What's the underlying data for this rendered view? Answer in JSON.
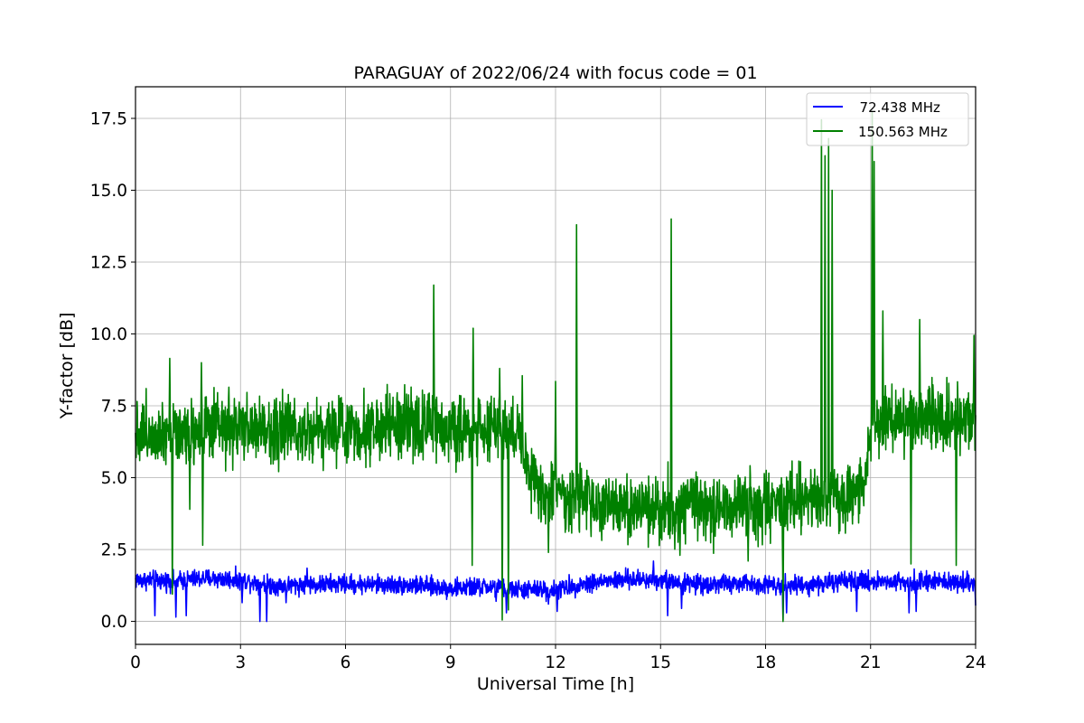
{
  "chart_data": {
    "type": "line",
    "title": "PARAGUAY of 2022/06/24 with focus code = 01",
    "xlabel": "Universal Time [h]",
    "ylabel": "Y-factor [dB]",
    "xlim": [
      0,
      24
    ],
    "ylim": [
      -0.8,
      18.6
    ],
    "x_ticks": [
      0,
      3,
      6,
      9,
      12,
      15,
      18,
      21,
      24
    ],
    "x_tick_labels": [
      "0",
      "3",
      "6",
      "9",
      "12",
      "15",
      "18",
      "21",
      "24"
    ],
    "y_ticks": [
      0,
      2.5,
      5,
      7.5,
      10,
      12.5,
      15,
      17.5
    ],
    "y_tick_labels": [
      "0.0",
      "2.5",
      "5.0",
      "7.5",
      "10.0",
      "12.5",
      "15.0",
      "17.5"
    ],
    "grid": true,
    "legend": {
      "position": "top-right"
    },
    "series": [
      {
        "name": "  72.438 MHz",
        "color": "#0000ff",
        "baseline": [
          [
            0,
            1.45
          ],
          [
            1,
            1.4
          ],
          [
            2,
            1.5
          ],
          [
            3,
            1.45
          ],
          [
            4,
            1.25
          ],
          [
            6,
            1.3
          ],
          [
            8,
            1.25
          ],
          [
            9,
            1.15
          ],
          [
            10,
            1.2
          ],
          [
            11,
            1.1
          ],
          [
            12,
            1.1
          ],
          [
            13,
            1.35
          ],
          [
            14,
            1.45
          ],
          [
            15,
            1.45
          ],
          [
            16,
            1.3
          ],
          [
            18,
            1.3
          ],
          [
            19,
            1.25
          ],
          [
            20,
            1.35
          ],
          [
            21,
            1.4
          ],
          [
            24,
            1.35
          ]
        ],
        "noise": 0.28,
        "spikes": [
          [
            0.55,
            0.2
          ],
          [
            1.15,
            0.15
          ],
          [
            1.45,
            0.2
          ],
          [
            3.05,
            0.65
          ],
          [
            3.55,
            0.0
          ],
          [
            3.75,
            0.0
          ],
          [
            4.3,
            0.65
          ],
          [
            4.9,
            1.85
          ],
          [
            10.3,
            0.7
          ],
          [
            10.6,
            0.3
          ],
          [
            11.8,
            0.6
          ],
          [
            12.05,
            0.35
          ],
          [
            14.8,
            2.1
          ],
          [
            15.2,
            0.2
          ],
          [
            15.6,
            0.45
          ],
          [
            18.5,
            0.05
          ],
          [
            18.6,
            0.3
          ],
          [
            20.6,
            0.35
          ],
          [
            22.1,
            0.3
          ],
          [
            22.3,
            0.35
          ],
          [
            24.0,
            0.55
          ]
        ]
      },
      {
        "name": "150.563 MHz",
        "color": "#008000",
        "baseline": [
          [
            0,
            6.6
          ],
          [
            2,
            6.65
          ],
          [
            4,
            6.7
          ],
          [
            6,
            6.7
          ],
          [
            8,
            6.8
          ],
          [
            9,
            6.7
          ],
          [
            10,
            6.7
          ],
          [
            10.9,
            6.6
          ],
          [
            11.2,
            5.3
          ],
          [
            11.6,
            4.5
          ],
          [
            12.2,
            4.4
          ],
          [
            13,
            4.1
          ],
          [
            14,
            3.9
          ],
          [
            15,
            3.9
          ],
          [
            16,
            4.0
          ],
          [
            17,
            4.0
          ],
          [
            18,
            4.0
          ],
          [
            19,
            4.2
          ],
          [
            20,
            4.3
          ],
          [
            20.8,
            4.5
          ],
          [
            21,
            7.0
          ],
          [
            22,
            7.1
          ],
          [
            23,
            7.0
          ],
          [
            24,
            7.0
          ]
        ],
        "noise": 1.0,
        "spikes": [
          [
            0.98,
            9.15
          ],
          [
            1.05,
            0.95
          ],
          [
            1.55,
            3.9
          ],
          [
            1.88,
            9.0
          ],
          [
            1.92,
            2.65
          ],
          [
            8.52,
            11.7
          ],
          [
            9.65,
            10.2
          ],
          [
            9.62,
            1.95
          ],
          [
            10.4,
            8.8
          ],
          [
            10.48,
            0.05
          ],
          [
            10.65,
            0.4
          ],
          [
            11.05,
            8.55
          ],
          [
            11.8,
            2.4
          ],
          [
            12.0,
            8.35
          ],
          [
            12.6,
            13.8
          ],
          [
            15.3,
            14.0
          ],
          [
            15.55,
            2.3
          ],
          [
            17.5,
            2.1
          ],
          [
            18.5,
            0.0
          ],
          [
            19.6,
            17.45
          ],
          [
            19.7,
            16.2
          ],
          [
            19.8,
            16.8
          ],
          [
            19.9,
            15.0
          ],
          [
            21.05,
            17.75
          ],
          [
            21.1,
            16.0
          ],
          [
            21.35,
            10.8
          ],
          [
            22.15,
            2.0
          ],
          [
            22.4,
            10.5
          ],
          [
            23.45,
            1.95
          ],
          [
            23.95,
            9.95
          ]
        ]
      }
    ]
  }
}
